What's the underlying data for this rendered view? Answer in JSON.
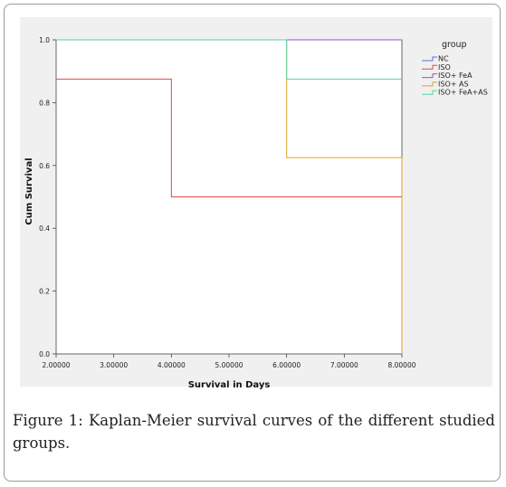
{
  "caption": {
    "label": "Figure 1:",
    "text": "Kaplan-Meier survival curves of the different studied groups."
  },
  "chart_data": {
    "type": "line",
    "step": true,
    "xlabel": "Survival in Days",
    "ylabel": "Cum Survival",
    "xlim": [
      2,
      8
    ],
    "ylim": [
      0,
      1
    ],
    "xticks": [
      2,
      3,
      4,
      5,
      6,
      7,
      8
    ],
    "xtick_labels": [
      "2.00000",
      "3.00000",
      "4.00000",
      "5.00000",
      "6.00000",
      "7.00000",
      "8.00000"
    ],
    "yticks": [
      0,
      0.2,
      0.4,
      0.6,
      0.8,
      1.0
    ],
    "ytick_labels": [
      "0.0",
      "0.2",
      "0.4",
      "0.6",
      "0.8",
      "1.0"
    ],
    "grid": false,
    "legend_title": "group",
    "legend_position": "top-right",
    "series": [
      {
        "name": "NC",
        "color": "#5b6fd6",
        "x": [
          2,
          8
        ],
        "y": [
          1.0,
          1.0
        ],
        "drop_to": null
      },
      {
        "name": "ISO",
        "color": "#e04848",
        "x": [
          2,
          4,
          8
        ],
        "y": [
          0.875,
          0.5,
          0.5
        ],
        "drop_to": null
      },
      {
        "name": "ISO+ FeA",
        "color": "#a64cc9",
        "x": [
          2,
          8
        ],
        "y": [
          1.0,
          1.0
        ],
        "drop_to": null
      },
      {
        "name": "ISO+ AS",
        "color": "#e0a030",
        "x": [
          2,
          6,
          8
        ],
        "y": [
          1.0,
          0.625,
          0.625
        ],
        "drop_to": 0.0
      },
      {
        "name": "ISO+ FeA+AS",
        "color": "#5ad0a8",
        "x": [
          2,
          6,
          8
        ],
        "y": [
          1.0,
          0.875,
          0.875
        ],
        "drop_to": null
      }
    ]
  }
}
